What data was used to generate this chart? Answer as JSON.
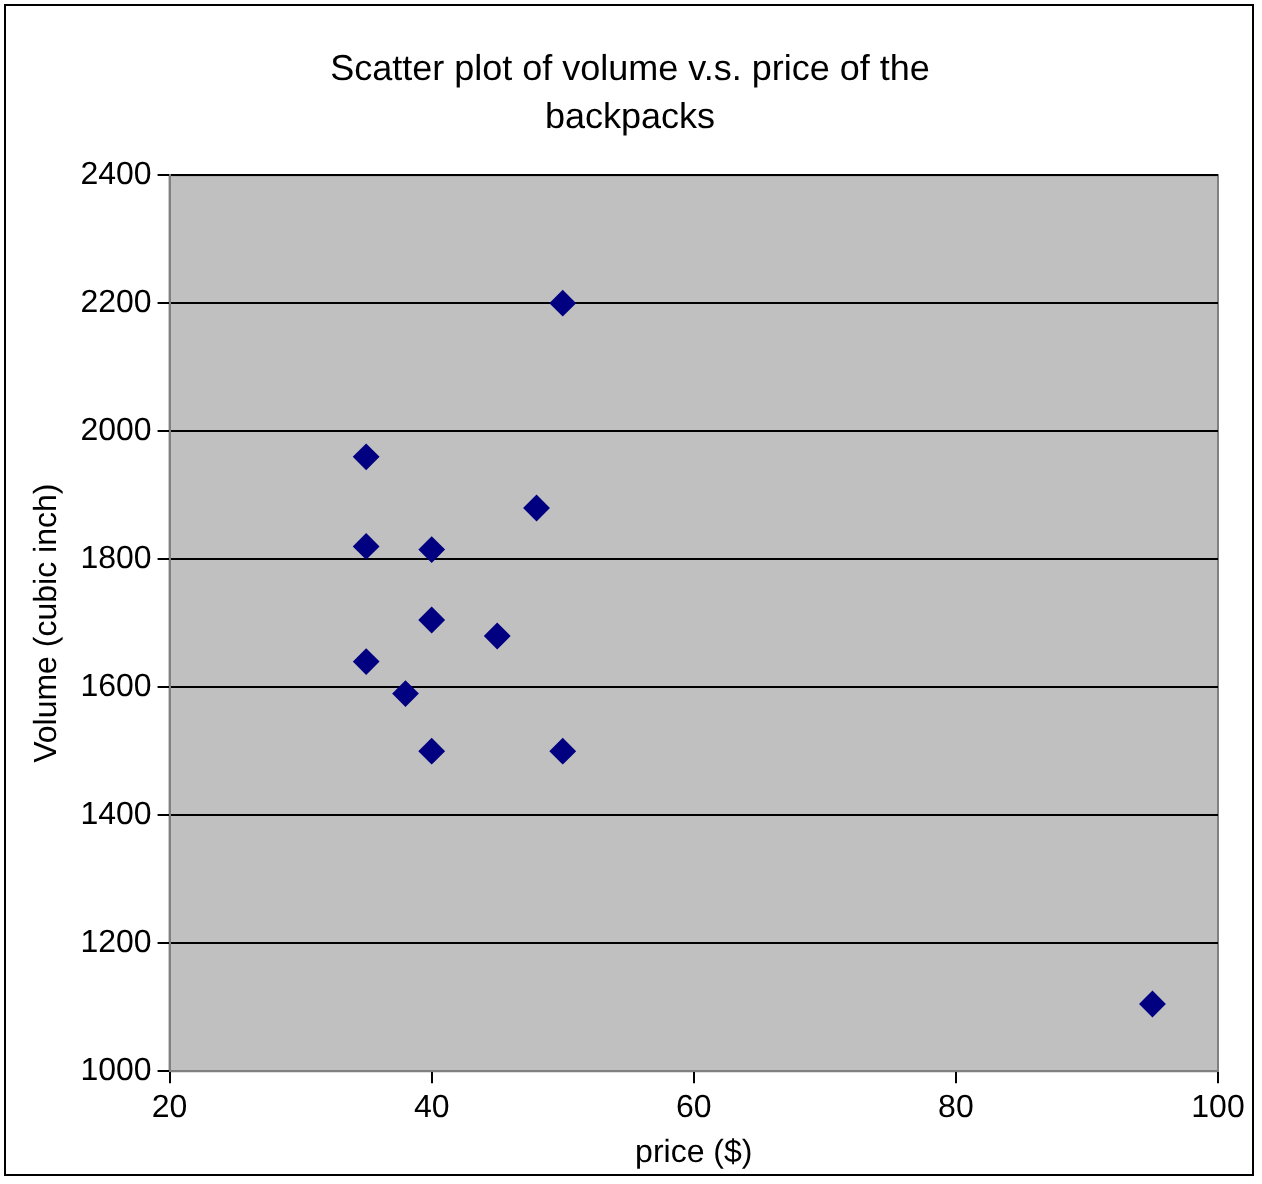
{
  "chart_data": {
    "type": "scatter",
    "title": "Scatter plot of volume v.s. price of the backpacks",
    "xlabel": "price ($)",
    "ylabel": "Volume (cubic inch)",
    "x": [
      35,
      50,
      35,
      40,
      48,
      40,
      45,
      35,
      38,
      40,
      50,
      95
    ],
    "values": [
      1960,
      2200,
      1820,
      1815,
      1880,
      1705,
      1680,
      1640,
      1590,
      1500,
      1500,
      1105
    ],
    "color": "#000080",
    "marker": "diamond",
    "xlim": [
      20,
      100
    ],
    "xticks": [
      20,
      40,
      60,
      80,
      100
    ],
    "ylim": [
      1000,
      2400
    ],
    "yticks": [
      1000,
      1200,
      1400,
      1600,
      1800,
      2000,
      2200,
      2400
    ],
    "grid": "y",
    "legend": false
  }
}
